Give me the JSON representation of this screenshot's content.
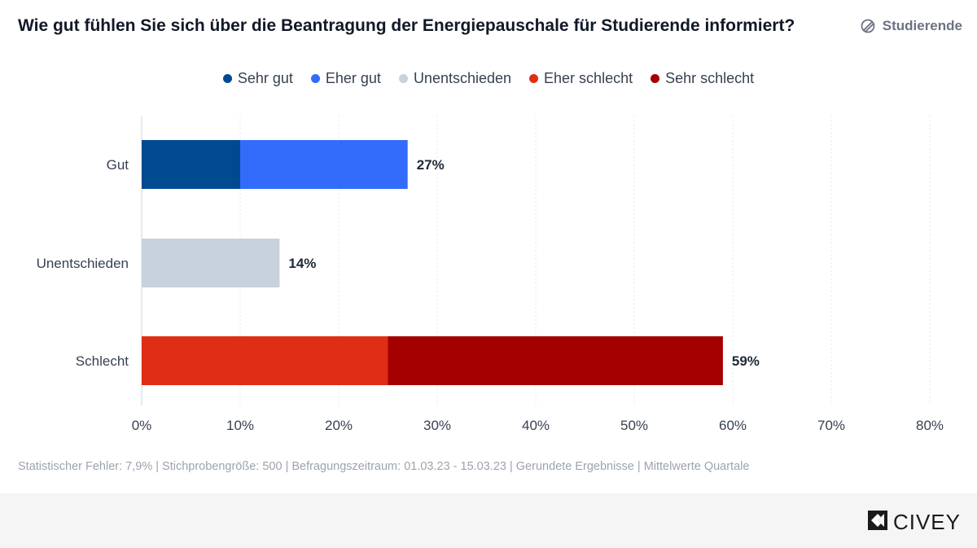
{
  "title": "Wie gut fühlen Sie sich über die Beantragung der Energiepauschale für Studierende informiert?",
  "segment": {
    "label": "Studierende",
    "icon": "segment-filter-icon"
  },
  "legend": [
    {
      "label": "Sehr gut",
      "color": "#004a8f"
    },
    {
      "label": "Eher gut",
      "color": "#336bfb"
    },
    {
      "label": "Unentschieden",
      "color": "#c8d2dc"
    },
    {
      "label": "Eher schlecht",
      "color": "#e02d15"
    },
    {
      "label": "Sehr schlecht",
      "color": "#a50000"
    }
  ],
  "chart_data": {
    "type": "bar",
    "orientation": "horizontal",
    "stacked": true,
    "categories": [
      "Gut",
      "Unentschieden",
      "Schlecht"
    ],
    "series": [
      {
        "name": "Sehr gut",
        "color": "#004a8f",
        "values": [
          10,
          0,
          0
        ]
      },
      {
        "name": "Eher gut",
        "color": "#336bfb",
        "values": [
          17,
          0,
          0
        ]
      },
      {
        "name": "Unentschieden",
        "color": "#c8d2dc",
        "values": [
          0,
          14,
          0
        ]
      },
      {
        "name": "Eher schlecht",
        "color": "#e02d15",
        "values": [
          0,
          0,
          25
        ]
      },
      {
        "name": "Sehr schlecht",
        "color": "#a50000",
        "values": [
          0,
          0,
          34
        ]
      }
    ],
    "totals": [
      "27%",
      "14%",
      "59%"
    ],
    "xlim": [
      0,
      80
    ],
    "xticks": [
      0,
      10,
      20,
      30,
      40,
      50,
      60,
      70,
      80
    ],
    "xtick_labels": [
      "0%",
      "10%",
      "20%",
      "30%",
      "40%",
      "50%",
      "60%",
      "70%",
      "80%"
    ],
    "grid": "vertical-dotted",
    "legend_position": "top-center"
  },
  "footnote": "Statistischer Fehler: 7,9% | Stichprobengröße: 500 | Befragungszeitraum: 01.03.23 - 15.03.23 | Gerundete Ergebnisse | Mittelwerte Quartale",
  "brand": {
    "name": "CIVEY",
    "icon": "civey-logo-icon"
  }
}
